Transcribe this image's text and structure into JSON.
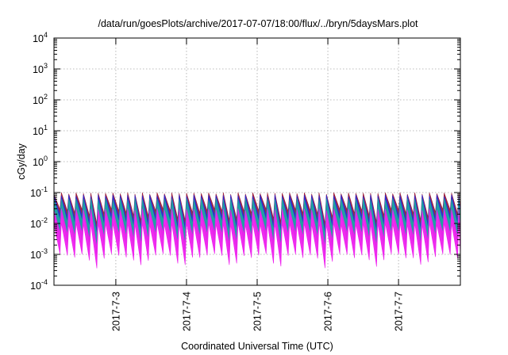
{
  "chart_data": {
    "type": "area",
    "title": "/data/run/goesPlots/archive/2017-07-07/18:00/flux/../bryn/5daysMars.plot",
    "xlabel": "Coordinated Universal Time (UTC)",
    "ylabel": "cGy/day",
    "yscale": "log",
    "ylim": [
      0.0001,
      10000
    ],
    "y_ticks": [
      {
        "value": 0.0001,
        "mantissa": "10",
        "exp": "-4"
      },
      {
        "value": 0.001,
        "mantissa": "10",
        "exp": "-3"
      },
      {
        "value": 0.01,
        "mantissa": "10",
        "exp": "-2"
      },
      {
        "value": 0.1,
        "mantissa": "10",
        "exp": "-1"
      },
      {
        "value": 1,
        "mantissa": "10",
        "exp": "0"
      },
      {
        "value": 10,
        "mantissa": "10",
        "exp": "1"
      },
      {
        "value": 100,
        "mantissa": "10",
        "exp": "2"
      },
      {
        "value": 1000,
        "mantissa": "10",
        "exp": "3"
      },
      {
        "value": 10000,
        "mantissa": "10",
        "exp": "4"
      }
    ],
    "xlim": [
      "2017-07-02 03:00",
      "2017-07-07 21:00"
    ],
    "x_ticks": [
      {
        "value": "2017-07-03 00:00",
        "label": "2017-7-3"
      },
      {
        "value": "2017-07-04 00:00",
        "label": "2017-7-4"
      },
      {
        "value": "2017-07-05 00:00",
        "label": "2017-7-5"
      },
      {
        "value": "2017-07-06 00:00",
        "label": "2017-7-6"
      },
      {
        "value": "2017-07-07 00:00",
        "label": "2017-7-7"
      }
    ],
    "grid": true,
    "legend": "none",
    "pattern": "sawtooth",
    "cycle_hours": 2.5,
    "series": [
      {
        "color": "#9c1f3a",
        "peak": 0.1,
        "trough": 0.008
      },
      {
        "color": "#2b2bd9",
        "peak": 0.085,
        "trough": 0.004
      },
      {
        "color": "#1fa8a0",
        "peak": 0.065,
        "trough": 0.0025
      },
      {
        "color": "#ee20ee",
        "peak": 0.03,
        "trough": 0.0009
      }
    ],
    "deep_dips": [
      "2017-07-02 17:00",
      "2017-07-03 08:00",
      "2017-07-03 23:00",
      "2017-07-04 16:00",
      "2017-07-05 07:00",
      "2017-07-05 23:00",
      "2017-07-06 16:00",
      "2017-07-07 08:00"
    ]
  }
}
